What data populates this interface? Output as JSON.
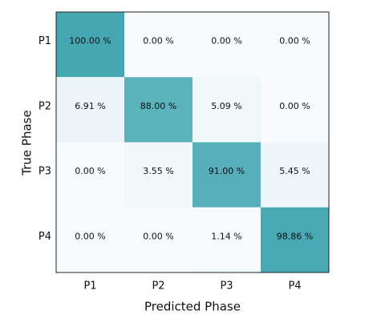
{
  "chart_data": {
    "type": "heatmap",
    "x_label": "Predicted Phase",
    "y_label": "True Phase",
    "x_categories": [
      "P1",
      "P2",
      "P3",
      "P4"
    ],
    "y_categories": [
      "P1",
      "P2",
      "P3",
      "P4"
    ],
    "values": [
      [
        100,
        0,
        0,
        0
      ],
      [
        6.91,
        88,
        5.09,
        0
      ],
      [
        0,
        3.55,
        91,
        5.45
      ],
      [
        0,
        0,
        1.14,
        98.86
      ]
    ],
    "value_labels": [
      [
        "100.00 %",
        "0.00 %",
        "0.00 %",
        "0.00 %"
      ],
      [
        "6.91 %",
        "88.00 %",
        "5.09 %",
        "0.00 %"
      ],
      [
        "0.00 %",
        "3.55 %",
        "91.00 %",
        "5.45 %"
      ],
      [
        "0.00 %",
        "0.00 %",
        "1.14 %",
        "98.86 %"
      ]
    ],
    "colormap": [
      "#f7fbfe",
      "#46a7b3"
    ],
    "zlim": [
      0,
      100
    ]
  }
}
